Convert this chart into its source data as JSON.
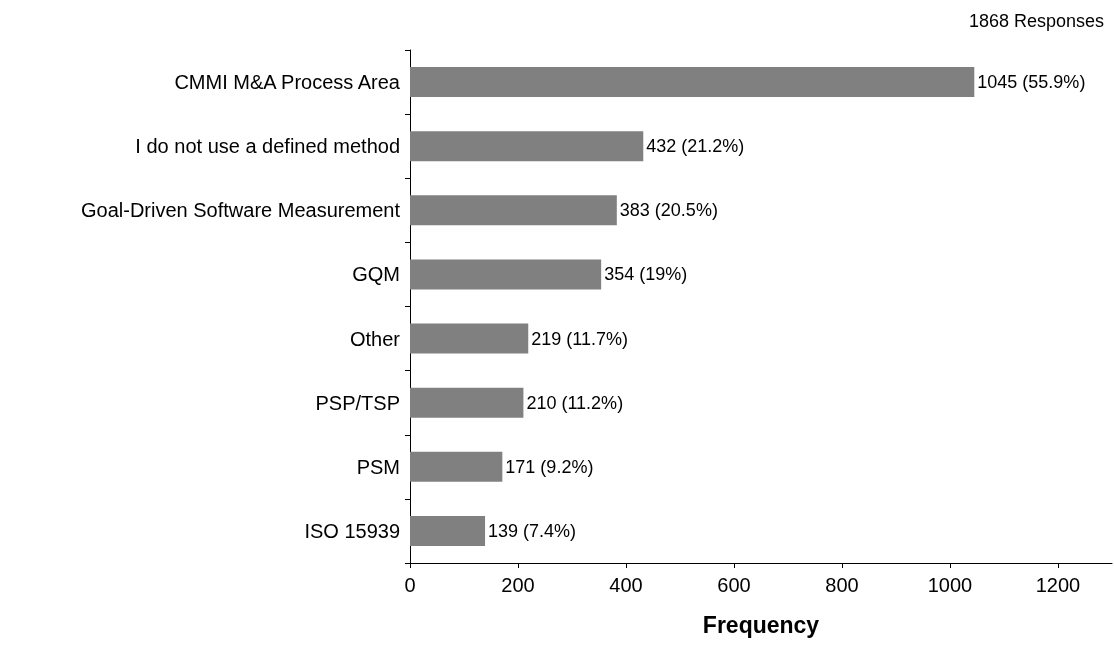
{
  "chart_data": {
    "type": "bar",
    "orientation": "horizontal",
    "categories": [
      "CMMI M&A Process Area",
      "I do not use a defined method",
      "Goal-Driven Software Measurement",
      "GQM",
      "Other",
      "PSP/TSP",
      "PSM",
      "ISO 15939"
    ],
    "values": [
      1045,
      432,
      383,
      354,
      219,
      210,
      171,
      139
    ],
    "value_labels": [
      "1045 (55.9%)",
      "432 (21.2%)",
      "383 (20.5%)",
      "354 (19%)",
      "219 (11.7%)",
      "210 (11.2%)",
      "171 (9.2%)",
      "139 (7.4%)"
    ],
    "color": "#808080",
    "xlim": [
      0,
      1300
    ],
    "xticks": [
      0,
      200,
      400,
      600,
      800,
      1000,
      1200
    ],
    "xlabel": "Frequency",
    "annotations": [
      "1868 Responses"
    ]
  }
}
